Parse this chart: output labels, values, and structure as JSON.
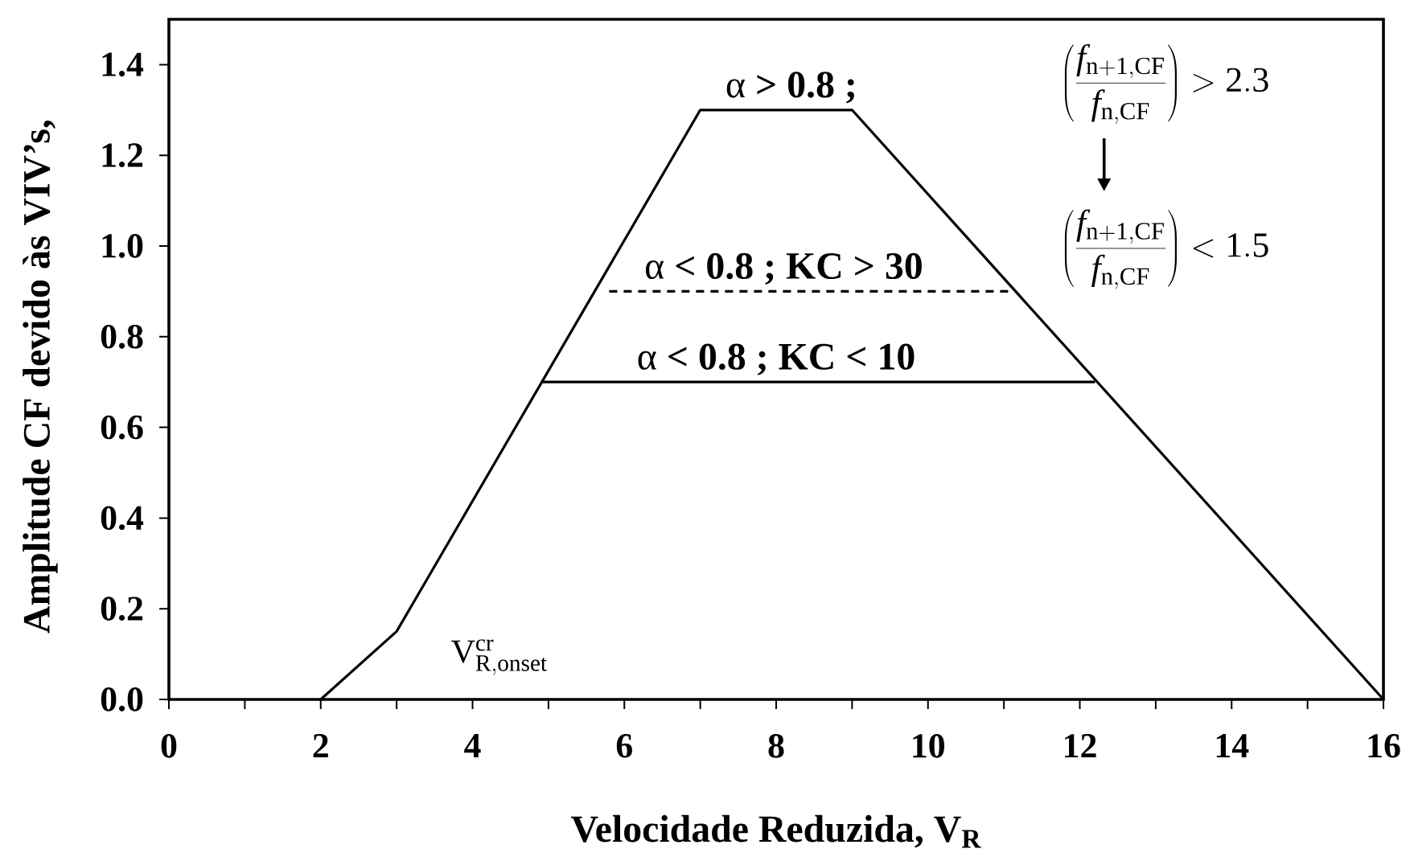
{
  "chart_data": {
    "type": "line",
    "xlabel": "Velocidade Reduzida, V$_{R}$",
    "ylabel": "Amplitude CF devido às VIV’s,",
    "xlim": [
      0,
      16
    ],
    "xticks": [
      0,
      {
        "value": 1,
        "label": null
      },
      2,
      {
        "value": 3,
        "label": null
      },
      4,
      {
        "value": 5,
        "label": null
      },
      6,
      {
        "value": 7,
        "label": null
      },
      8,
      {
        "value": 9,
        "label": null
      },
      10,
      {
        "value": 11,
        "label": null
      },
      12,
      {
        "value": 13,
        "label": null
      },
      14,
      {
        "value": 15,
        "label": null
      },
      16
    ],
    "ylim": [
      0,
      1.5
    ],
    "yticks": [
      {
        "value": 0,
        "label": "0.0"
      },
      0.2,
      0.4,
      0.6,
      0.8,
      {
        "value": 1,
        "label": "1.0"
      },
      1.2,
      1.4
    ],
    "series": [
      {
        "x": [
          2,
          3,
          7,
          9,
          16
        ],
        "values": [
          0,
          0.15,
          1.3,
          1.3,
          0
        ],
        "color": "#000000",
        "line_style": "solid"
      },
      {
        "x": [
          5.8,
          11.1
        ],
        "values": [
          0.9,
          0.9
        ],
        "color": "#000000",
        "line_style": "dashed"
      },
      {
        "x": [
          4.9,
          12.2
        ],
        "values": [
          0.7,
          0.7
        ],
        "color": "#000000",
        "line_style": "solid"
      }
    ],
    "annotations": [
      {
        "text": "α **> 0.8 ;**",
        "x": 8.2,
        "y": 1.3
      },
      {
        "text": "α **< 0.8 ; KC > 30**",
        "x": 8.1,
        "y": 0.9
      },
      {
        "text": "α **< 0.8 ; KC < 10**",
        "x": 8,
        "y": 0.7
      },
      "\\mathrm{V}^{\\mathrm{cr}}_{\\mathrm{R,onset}}",
      "\\left(\\frac{f_{\\mathrm{n+1,CF}}}{f_{\\mathrm{n,CF}}}\\right) > 2.3",
      "\\left(\\frac{f_{\\mathrm{n+1,CF}}}{f_{\\mathrm{n,CF}}}\\right) < 1.5"
    ]
  }
}
